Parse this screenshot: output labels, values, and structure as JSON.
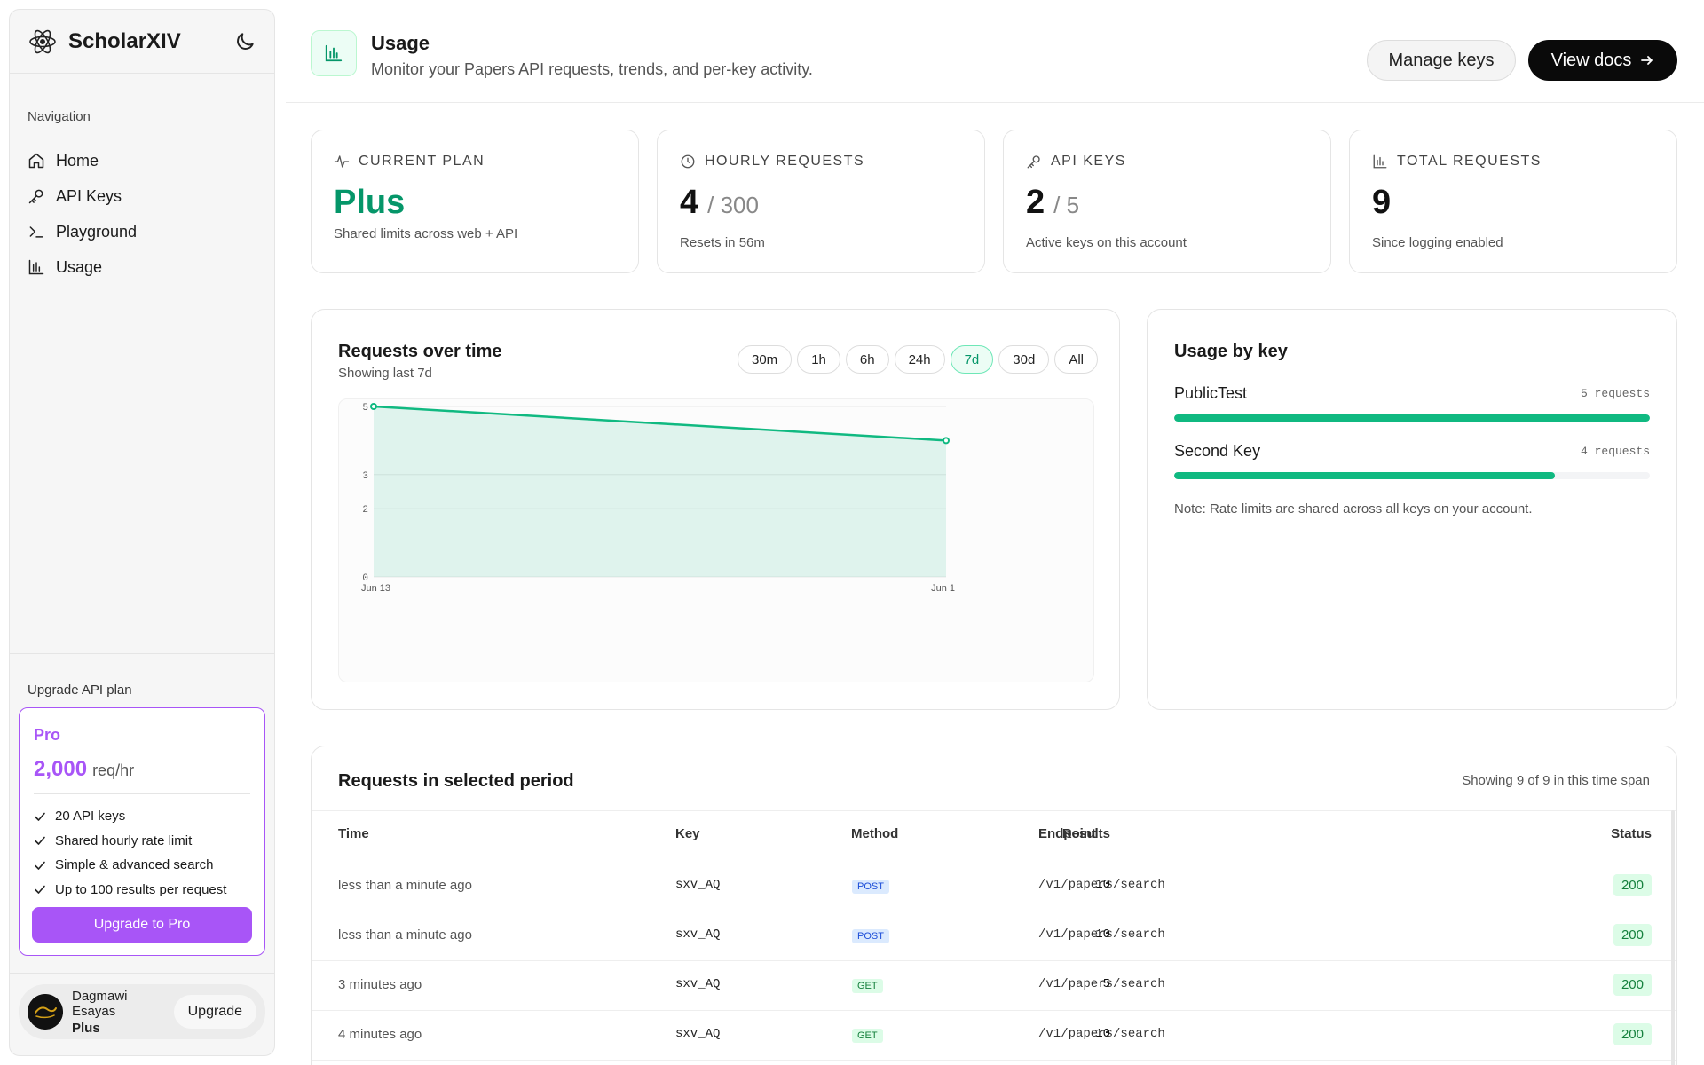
{
  "brand": {
    "name": "ScholarXIV"
  },
  "sidebar": {
    "nav_title": "Navigation",
    "items": [
      {
        "label": "Home",
        "icon": "home-icon"
      },
      {
        "label": "API Keys",
        "icon": "key-icon"
      },
      {
        "label": "Playground",
        "icon": "terminal-icon"
      },
      {
        "label": "Usage",
        "icon": "bar-chart-icon"
      }
    ],
    "upgrade": {
      "title": "Upgrade API plan",
      "plan": "Pro",
      "price": "2,000",
      "unit": "req/hr",
      "features": [
        "20 API keys",
        "Shared hourly rate limit",
        "Simple & advanced search",
        "Up to 100 results per request"
      ],
      "button": "Upgrade to Pro"
    },
    "user": {
      "name": "Dagmawi Esayas",
      "plan": "Plus",
      "upgrade_label": "Upgrade"
    }
  },
  "header": {
    "title": "Usage",
    "subtitle": "Monitor your Papers API requests, trends, and per-key activity.",
    "manage_keys": "Manage keys",
    "view_docs": "View docs"
  },
  "stats": {
    "plan": {
      "label": "CURRENT PLAN",
      "value": "Plus",
      "note": "Shared limits across web + API"
    },
    "hourly": {
      "label": "HOURLY REQUESTS",
      "value": "4",
      "of": "/ 300",
      "note": "Resets in 56m"
    },
    "keys": {
      "label": "API KEYS",
      "value": "2",
      "of": "/ 5",
      "note": "Active keys on this account"
    },
    "total": {
      "label": "TOTAL REQUESTS",
      "value": "9",
      "note": "Since logging enabled"
    }
  },
  "chart": {
    "title": "Requests over time",
    "subtitle": "Showing last 7d",
    "ranges": [
      "30m",
      "1h",
      "6h",
      "24h",
      "7d",
      "30d",
      "All"
    ],
    "active_range": "7d",
    "accent": "#10b981"
  },
  "chart_data": {
    "type": "area",
    "x": [
      "Jun 13",
      "Jun 1"
    ],
    "values": [
      5,
      4
    ],
    "y_ticks": [
      0,
      2,
      3,
      5
    ],
    "ylim": [
      0,
      5
    ],
    "title": "Requests over time",
    "xlabel": "",
    "ylabel": ""
  },
  "usage_by_key": {
    "title": "Usage by key",
    "keys": [
      {
        "name": "PublicTest",
        "count_label": "5 requests",
        "fraction": 1.0
      },
      {
        "name": "Second Key",
        "count_label": "4 requests",
        "fraction": 0.8
      }
    ],
    "note": "Note: Rate limits are shared across all keys on your account."
  },
  "requests": {
    "title": "Requests in selected period",
    "count_text": "Showing 9 of 9 in this time span",
    "columns": [
      "Time",
      "Key",
      "Method",
      "Endpoint",
      "Results",
      "Status"
    ],
    "rows": [
      {
        "time": "less than a minute ago",
        "key": "sxv_AQ",
        "method": "POST",
        "endpoint": "/v1/papers/search",
        "results": "10",
        "status": "200"
      },
      {
        "time": "less than a minute ago",
        "key": "sxv_AQ",
        "method": "POST",
        "endpoint": "/v1/papers/search",
        "results": "10",
        "status": "200"
      },
      {
        "time": "3 minutes ago",
        "key": "sxv_AQ",
        "method": "GET",
        "endpoint": "/v1/papers/search",
        "results": "5",
        "status": "200"
      },
      {
        "time": "4 minutes ago",
        "key": "sxv_AQ",
        "method": "GET",
        "endpoint": "/v1/papers/search",
        "results": "10",
        "status": "200"
      }
    ]
  }
}
